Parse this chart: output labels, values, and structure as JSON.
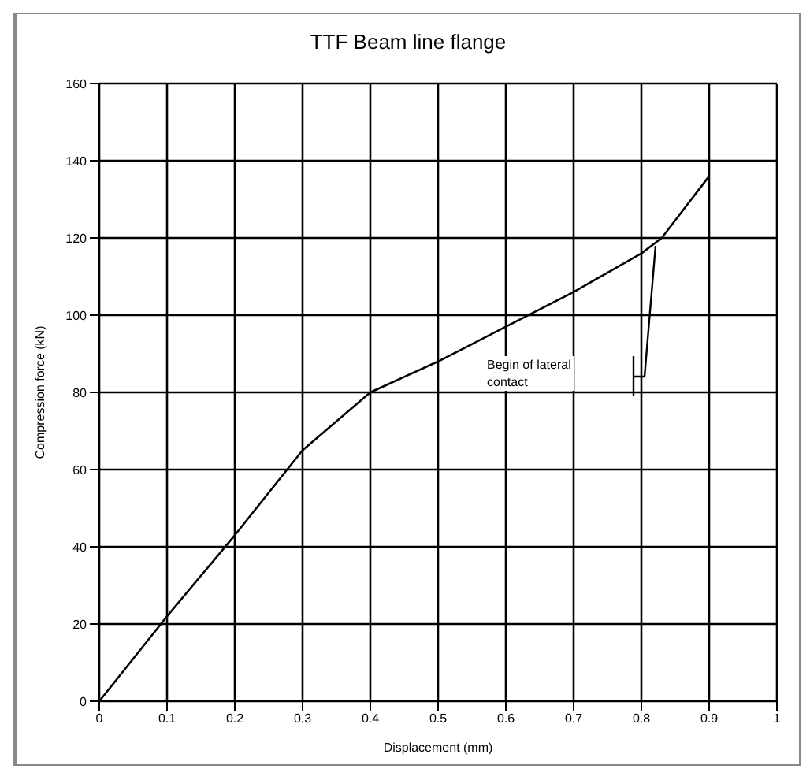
{
  "chart_data": {
    "type": "line",
    "title": "TTF Beam line flange",
    "xlabel": "Displacement (mm)",
    "ylabel": "Compression force (kN)",
    "x": [
      0,
      0.1,
      0.2,
      0.3,
      0.4,
      0.5,
      0.6,
      0.7,
      0.8,
      0.83,
      0.9
    ],
    "series": [
      {
        "color": "#000000",
        "values": [
          0,
          22,
          43,
          65,
          80,
          88,
          97,
          106,
          116,
          120,
          136
        ]
      }
    ],
    "xlim": [
      0,
      1
    ],
    "xticks": [
      0,
      0.1,
      0.2,
      0.3,
      0.4,
      0.5,
      0.6,
      0.7,
      0.8,
      0.9,
      1
    ],
    "ylim": [
      0,
      160
    ],
    "yticks": [
      0,
      20,
      40,
      60,
      80,
      100,
      120,
      140,
      160
    ],
    "grid": true,
    "marker": "none",
    "line_style": "solid",
    "annotations": [
      "Begin of lateral contact"
    ]
  }
}
